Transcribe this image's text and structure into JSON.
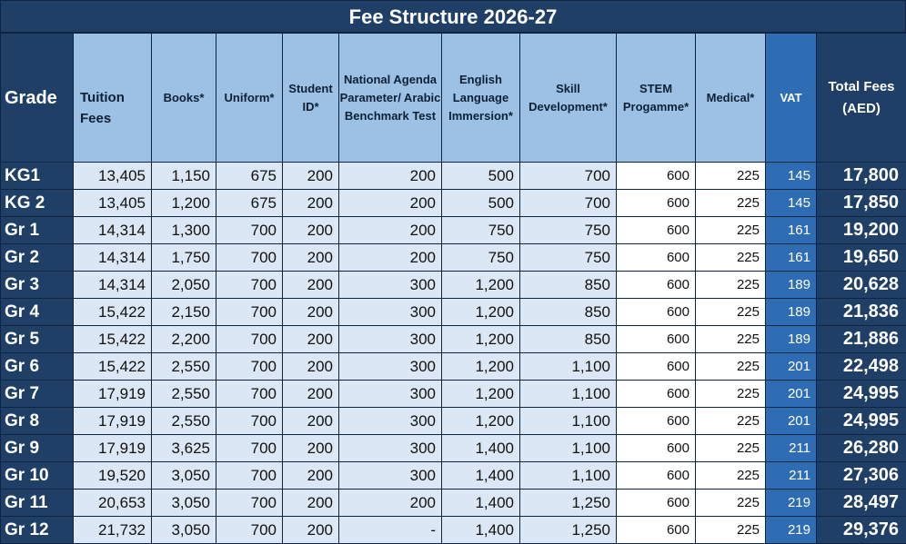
{
  "title": "Fee Structure 2026-27",
  "headers": {
    "grade": "Grade",
    "tuition": "Tuition Fees",
    "books": "Books*",
    "uniform": "Uniform*",
    "student_id": "Student ID*",
    "national_agenda": "National Agenda Parameter/ Arabic Benchmark Test",
    "english": "English Language Immersion*",
    "skill": "Skill Development*",
    "stem": "STEM Progamme*",
    "medical": "Medical*",
    "vat": "VAT",
    "total": "Total Fees (AED)"
  },
  "rows": [
    {
      "grade": "KG1",
      "tuition": "13,405",
      "books": "1,150",
      "uniform": "675",
      "student_id": "200",
      "national_agenda": "200",
      "english": "500",
      "skill": "700",
      "stem": "600",
      "medical": "225",
      "vat": "145",
      "total": "17,800"
    },
    {
      "grade": "KG 2",
      "tuition": "13,405",
      "books": "1,200",
      "uniform": "675",
      "student_id": "200",
      "national_agenda": "200",
      "english": "500",
      "skill": "700",
      "stem": "600",
      "medical": "225",
      "vat": "145",
      "total": "17,850"
    },
    {
      "grade": "Gr 1",
      "tuition": "14,314",
      "books": "1,300",
      "uniform": "700",
      "student_id": "200",
      "national_agenda": "200",
      "english": "750",
      "skill": "750",
      "stem": "600",
      "medical": "225",
      "vat": "161",
      "total": "19,200"
    },
    {
      "grade": "Gr 2",
      "tuition": "14,314",
      "books": "1,750",
      "uniform": "700",
      "student_id": "200",
      "national_agenda": "200",
      "english": "750",
      "skill": "750",
      "stem": "600",
      "medical": "225",
      "vat": "161",
      "total": "19,650"
    },
    {
      "grade": "Gr 3",
      "tuition": "14,314",
      "books": "2,050",
      "uniform": "700",
      "student_id": "200",
      "national_agenda": "300",
      "english": "1,200",
      "skill": "850",
      "stem": "600",
      "medical": "225",
      "vat": "189",
      "total": "20,628"
    },
    {
      "grade": "Gr 4",
      "tuition": "15,422",
      "books": "2,150",
      "uniform": "700",
      "student_id": "200",
      "national_agenda": "300",
      "english": "1,200",
      "skill": "850",
      "stem": "600",
      "medical": "225",
      "vat": "189",
      "total": "21,836"
    },
    {
      "grade": "Gr 5",
      "tuition": "15,422",
      "books": "2,200",
      "uniform": "700",
      "student_id": "200",
      "national_agenda": "300",
      "english": "1,200",
      "skill": "850",
      "stem": "600",
      "medical": "225",
      "vat": "189",
      "total": "21,886"
    },
    {
      "grade": "Gr 6",
      "tuition": "15,422",
      "books": "2,550",
      "uniform": "700",
      "student_id": "200",
      "national_agenda": "300",
      "english": "1,200",
      "skill": "1,100",
      "stem": "600",
      "medical": "225",
      "vat": "201",
      "total": "22,498"
    },
    {
      "grade": "Gr 7",
      "tuition": "17,919",
      "books": "2,550",
      "uniform": "700",
      "student_id": "200",
      "national_agenda": "300",
      "english": "1,200",
      "skill": "1,100",
      "stem": "600",
      "medical": "225",
      "vat": "201",
      "total": "24,995"
    },
    {
      "grade": "Gr 8",
      "tuition": "17,919",
      "books": "2,550",
      "uniform": "700",
      "student_id": "200",
      "national_agenda": "300",
      "english": "1,200",
      "skill": "1,100",
      "stem": "600",
      "medical": "225",
      "vat": "201",
      "total": "24,995"
    },
    {
      "grade": "Gr 9",
      "tuition": "17,919",
      "books": "3,625",
      "uniform": "700",
      "student_id": "200",
      "national_agenda": "300",
      "english": "1,400",
      "skill": "1,100",
      "stem": "600",
      "medical": "225",
      "vat": "211",
      "total": "26,280"
    },
    {
      "grade": "Gr 10",
      "tuition": "19,520",
      "books": "3,050",
      "uniform": "700",
      "student_id": "200",
      "national_agenda": "300",
      "english": "1,400",
      "skill": "1,100",
      "stem": "600",
      "medical": "225",
      "vat": "211",
      "total": "27,306"
    },
    {
      "grade": "Gr 11",
      "tuition": "20,653",
      "books": "3,050",
      "uniform": "700",
      "student_id": "200",
      "national_agenda": "200",
      "english": "1,400",
      "skill": "1,250",
      "stem": "600",
      "medical": "225",
      "vat": "219",
      "total": "28,497"
    },
    {
      "grade": "Gr 12",
      "tuition": "21,732",
      "books": "3,050",
      "uniform": "700",
      "student_id": "200",
      "national_agenda": "-",
      "english": "1,400",
      "skill": "1,250",
      "stem": "600",
      "medical": "225",
      "vat": "219",
      "total": "29,376"
    }
  ],
  "colors": {
    "header_dark": "#1f3f66",
    "header_light": "#9cc1e4",
    "cell_light": "#dbe7f4",
    "vat_blue": "#2e6db4"
  }
}
